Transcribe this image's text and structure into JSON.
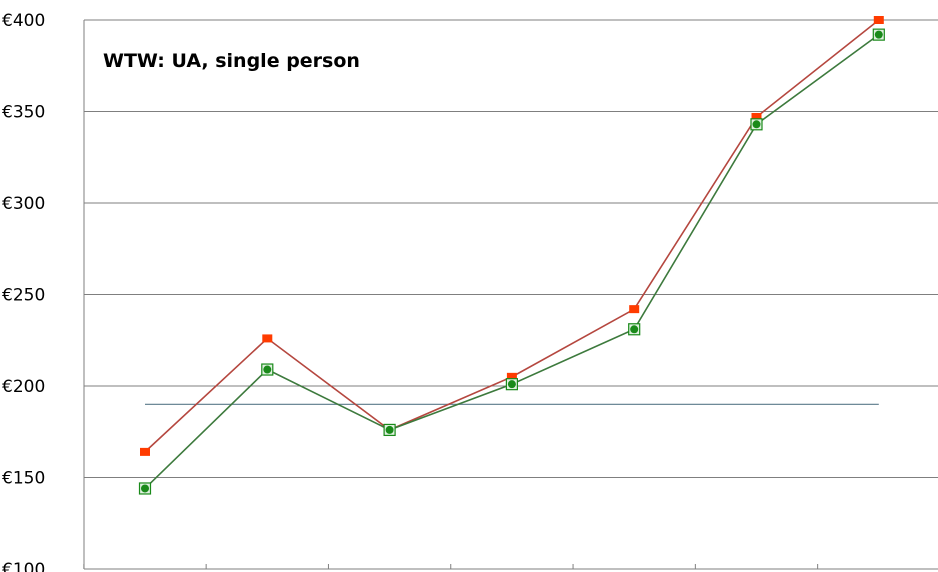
{
  "chart_data": {
    "type": "line",
    "title": "WTW: UA, single person",
    "xlabel": "",
    "ylabel": "",
    "ylim": [
      100,
      400
    ],
    "y_ticks": [
      100,
      150,
      200,
      250,
      300,
      350,
      400
    ],
    "y_tick_labels": [
      "€100",
      "€150",
      "€200",
      "€250",
      "€300",
      "€350",
      "€400"
    ],
    "x_count": 7,
    "grid": true,
    "legend": "none",
    "series": [
      {
        "color": "#b5473f",
        "marker_color": "#ff3b00",
        "marker": "square",
        "values": [
          164,
          226,
          176,
          205,
          242,
          347,
          400
        ]
      },
      {
        "color": "#3d7a3d",
        "marker_color": "#1a8a1a",
        "marker": "circle-in-square",
        "values": [
          144,
          209,
          176,
          201,
          231,
          343,
          392
        ]
      }
    ],
    "reference_line": {
      "color": "#5a7a8a",
      "value": 190
    }
  }
}
